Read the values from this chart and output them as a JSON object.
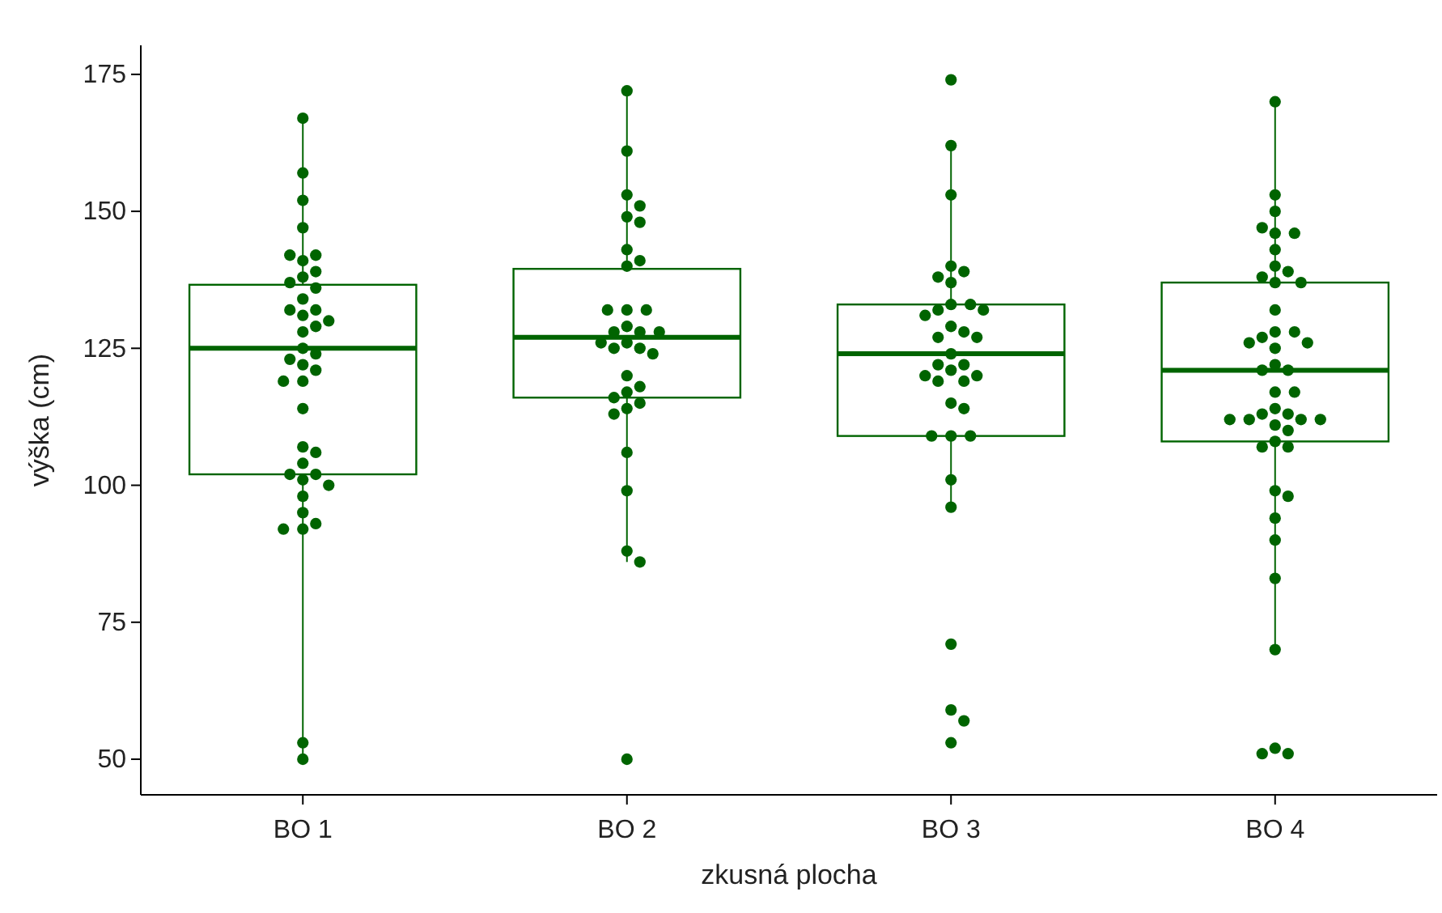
{
  "chart_data": {
    "type": "box",
    "xlabel": "zkusná plocha",
    "ylabel": "výška (cm)",
    "categories": [
      "BO 1",
      "BO 2",
      "BO 3",
      "BO 4"
    ],
    "ylim": [
      43.5,
      180.3
    ],
    "yticks": [
      50,
      75,
      100,
      125,
      150,
      175
    ],
    "grid": false,
    "series": [
      {
        "type": "box",
        "color": "#006400",
        "boxes": [
          {
            "low": 50,
            "q1": 102,
            "median": 125,
            "q3": 136.6,
            "high": 167
          },
          {
            "low": 86,
            "q1": 116,
            "median": 127,
            "q3": 139.5,
            "high": 172
          },
          {
            "low": 96,
            "q1": 109,
            "median": 124,
            "q3": 133,
            "high": 162
          },
          {
            "low": 70,
            "q1": 108,
            "median": 121,
            "q3": 137,
            "high": 170
          }
        ]
      },
      {
        "type": "scatter",
        "color": "#006400",
        "marker": "circle",
        "x": [
          "BO 1",
          "BO 1",
          "BO 1",
          "BO 1",
          "BO 1",
          "BO 1",
          "BO 1",
          "BO 1",
          "BO 1",
          "BO 1",
          "BO 1",
          "BO 1",
          "BO 1",
          "BO 1",
          "BO 1",
          "BO 1",
          "BO 1",
          "BO 1",
          "BO 1",
          "BO 1",
          "BO 1",
          "BO 1",
          "BO 1",
          "BO 1",
          "BO 1",
          "BO 1",
          "BO 1",
          "BO 1",
          "BO 1",
          "BO 1",
          "BO 1",
          "BO 1",
          "BO 1",
          "BO 1",
          "BO 1",
          "BO 1",
          "BO 1",
          "BO 1",
          "BO 1",
          "BO 1",
          "BO 2",
          "BO 2",
          "BO 2",
          "BO 2",
          "BO 2",
          "BO 2",
          "BO 2",
          "BO 2",
          "BO 2",
          "BO 2",
          "BO 2",
          "BO 2",
          "BO 2",
          "BO 2",
          "BO 2",
          "BO 2",
          "BO 2",
          "BO 2",
          "BO 2",
          "BO 2",
          "BO 2",
          "BO 2",
          "BO 2",
          "BO 2",
          "BO 2",
          "BO 2",
          "BO 2",
          "BO 2",
          "BO 2",
          "BO 2",
          "BO 2",
          "BO 2",
          "BO 2",
          "BO 3",
          "BO 3",
          "BO 3",
          "BO 3",
          "BO 3",
          "BO 3",
          "BO 3",
          "BO 3",
          "BO 3",
          "BO 3",
          "BO 3",
          "BO 3",
          "BO 3",
          "BO 3",
          "BO 3",
          "BO 3",
          "BO 3",
          "BO 3",
          "BO 3",
          "BO 3",
          "BO 3",
          "BO 3",
          "BO 3",
          "BO 3",
          "BO 3",
          "BO 3",
          "BO 3",
          "BO 3",
          "BO 3",
          "BO 3",
          "BO 3",
          "BO 3",
          "BO 3",
          "BO 3",
          "BO 3",
          "BO 4",
          "BO 4",
          "BO 4",
          "BO 4",
          "BO 4",
          "BO 4",
          "BO 4",
          "BO 4",
          "BO 4",
          "BO 4",
          "BO 4",
          "BO 4",
          "BO 4",
          "BO 4",
          "BO 4",
          "BO 4",
          "BO 4",
          "BO 4",
          "BO 4",
          "BO 4",
          "BO 4",
          "BO 4",
          "BO 4",
          "BO 4",
          "BO 4",
          "BO 4",
          "BO 4",
          "BO 4",
          "BO 4",
          "BO 4",
          "BO 4",
          "BO 4",
          "BO 4",
          "BO 4",
          "BO 4",
          "BO 4",
          "BO 4",
          "BO 4",
          "BO 4",
          "BO 4",
          "BO 4",
          "BO 4",
          "BO 4",
          "BO 4",
          "BO 4"
        ],
        "values": [
          167,
          157,
          152,
          147,
          141,
          142,
          142,
          139,
          138,
          137,
          136,
          134,
          132,
          132,
          131,
          130,
          129,
          128,
          125,
          124,
          123,
          122,
          121,
          119,
          119,
          114,
          107,
          106,
          104,
          102,
          102,
          101,
          100,
          98,
          95,
          93,
          92,
          92,
          53,
          50,
          172,
          161,
          153,
          151,
          149,
          148,
          143,
          141,
          140,
          132,
          132,
          132,
          129,
          128,
          128,
          128,
          126,
          126,
          125,
          125,
          124,
          120,
          118,
          117,
          116,
          114,
          115,
          113,
          106,
          99,
          88,
          86,
          50,
          174,
          162,
          153,
          140,
          139,
          138,
          137,
          133,
          133,
          132,
          132,
          131,
          129,
          128,
          127,
          127,
          124,
          122,
          122,
          121,
          120,
          119,
          119,
          120,
          115,
          114,
          109,
          109,
          109,
          101,
          96,
          71,
          59,
          57,
          53,
          170,
          153,
          150,
          146,
          146,
          147,
          143,
          140,
          139,
          138,
          137,
          137,
          132,
          128,
          128,
          127,
          126,
          126,
          125,
          122,
          121,
          121,
          117,
          117,
          114,
          113,
          113,
          112,
          112,
          112,
          112,
          111,
          110,
          108,
          107,
          107,
          99,
          98,
          94,
          90,
          83,
          70,
          52,
          51,
          51
        ]
      }
    ]
  }
}
